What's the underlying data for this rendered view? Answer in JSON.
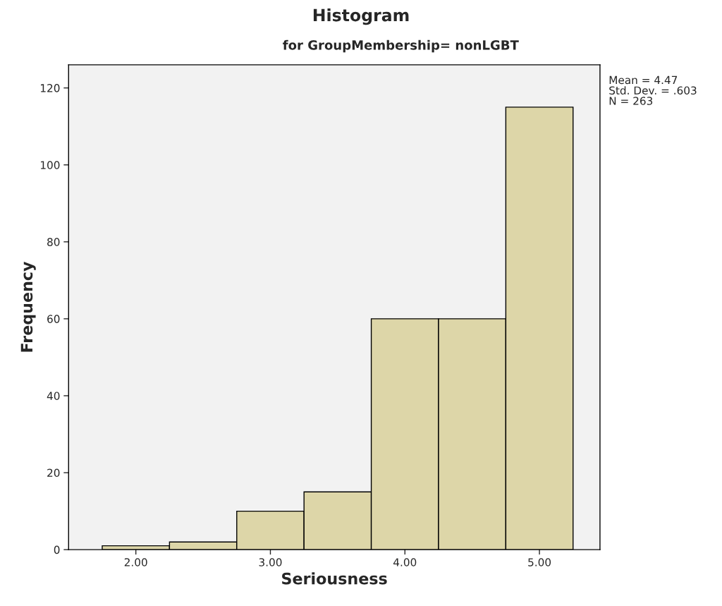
{
  "chart_data": {
    "type": "histogram",
    "title": "Histogram",
    "subtitle": "for GroupMembership= nonLGBT",
    "xlabel": "Seriousness",
    "ylabel": "Frequency",
    "bins": [
      1.75,
      2.25,
      2.75,
      3.25,
      3.75,
      4.25,
      4.75,
      5.25
    ],
    "values": [
      1,
      2,
      10,
      15,
      60,
      60,
      115
    ],
    "color": "#ddd6a8",
    "xlim": [
      1.5,
      5.45
    ],
    "xticks": [
      {
        "value": 2,
        "label": "2.00"
      },
      {
        "value": 3,
        "label": "3.00"
      },
      {
        "value": 4,
        "label": "4.00"
      },
      {
        "value": 5,
        "label": "5.00"
      }
    ],
    "ylim": [
      0,
      126
    ],
    "yticks": [
      0,
      20,
      40,
      60,
      80,
      100,
      120
    ],
    "annotations": [
      "Mean = 4.47",
      "Std. Dev. = .603",
      "N = 263"
    ],
    "grid": false,
    "legend": false
  }
}
